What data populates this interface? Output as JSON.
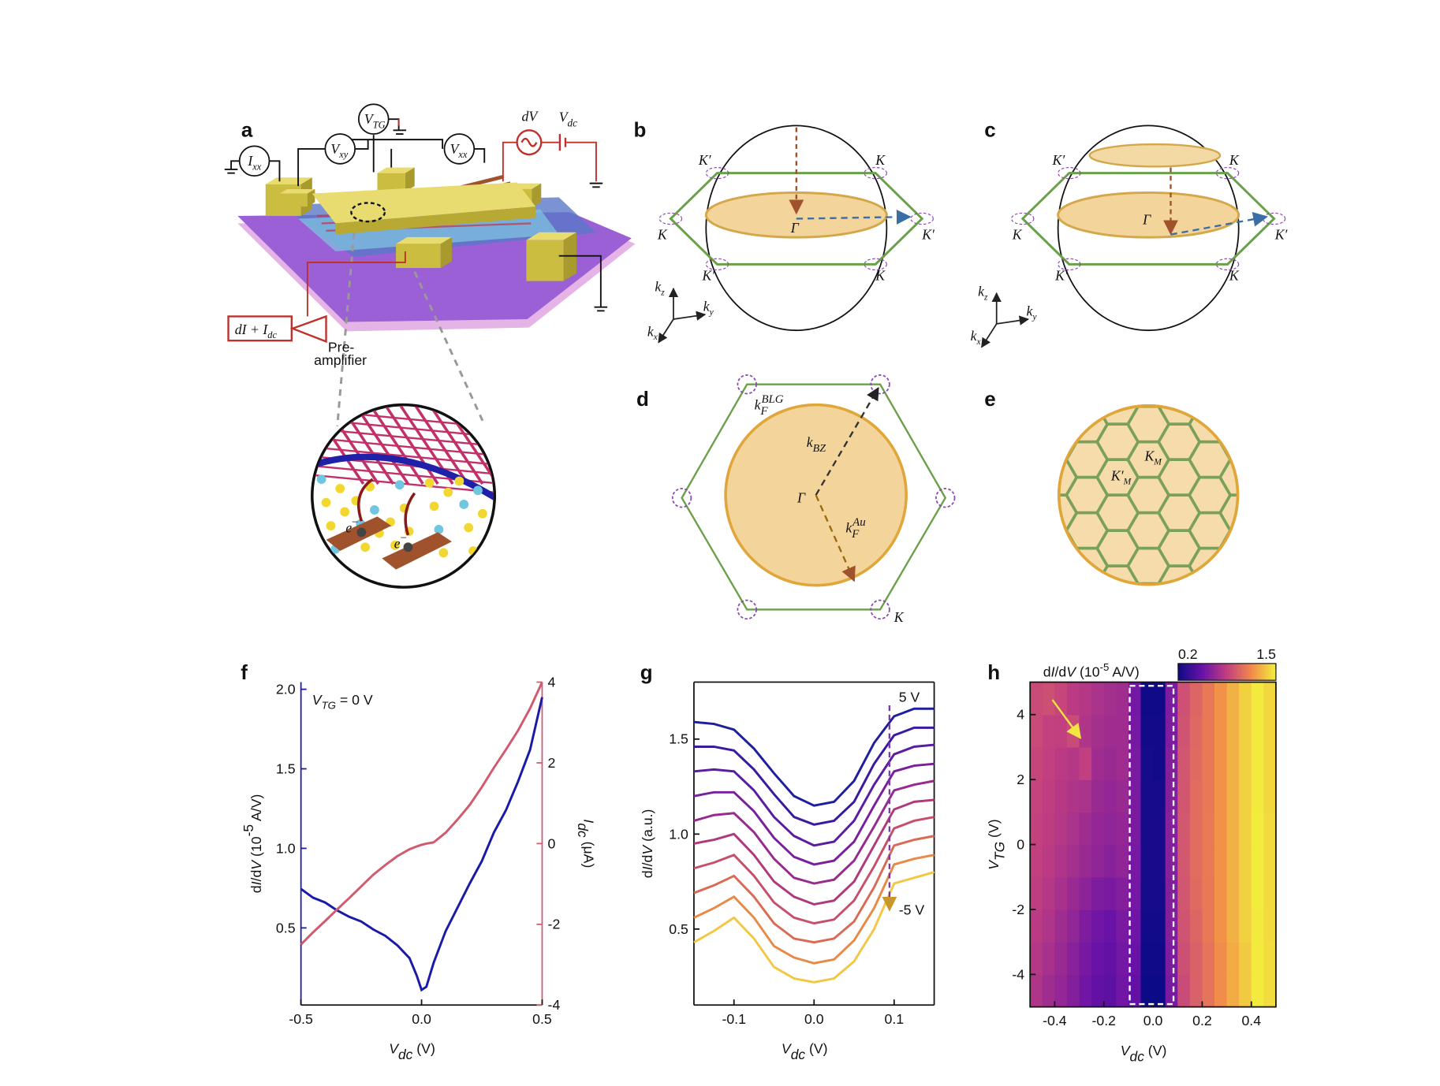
{
  "figure": {
    "panel_labels": [
      "a",
      "b",
      "c",
      "d",
      "e",
      "f",
      "g",
      "h"
    ],
    "a": {
      "meters": [
        [
          [
            "I",
            "i"
          ],
          [
            "xx",
            "isub"
          ]
        ],
        [
          [
            "V",
            "i"
          ],
          [
            "xy",
            "isub"
          ]
        ],
        [
          [
            "V",
            "i"
          ],
          [
            "TG",
            "isub"
          ]
        ],
        [
          [
            "V",
            "i"
          ],
          [
            "xx",
            "isub"
          ]
        ]
      ],
      "source_ac": [
        [
          "dV",
          "i"
        ]
      ],
      "source_dc": [
        [
          "V",
          "i"
        ],
        [
          "dc",
          "isub"
        ]
      ],
      "output": [
        [
          "dI + I",
          "i"
        ],
        [
          "dc",
          "isub"
        ]
      ],
      "amplifier": [
        "Pre-",
        "amplifier"
      ],
      "carrier": [
        [
          "e",
          "i"
        ],
        [
          "−",
          "sup"
        ]
      ]
    },
    "b": {
      "points": [
        "K′",
        "K",
        "K",
        "K′",
        "K′",
        "K"
      ],
      "center": "Γ",
      "axes": [
        [
          [
            "k",
            "i"
          ],
          [
            "z",
            "isub"
          ]
        ],
        [
          [
            "k",
            "i"
          ],
          [
            "y",
            "isub"
          ]
        ],
        [
          [
            "k",
            "i"
          ],
          [
            "x",
            "isub"
          ]
        ]
      ]
    },
    "c": {
      "points": [
        "K′",
        "K",
        "K",
        "K′",
        "K′",
        "K"
      ],
      "center": "Γ",
      "axes": [
        [
          [
            "k",
            "i"
          ],
          [
            "z",
            "isub"
          ]
        ],
        [
          [
            "k",
            "i"
          ],
          [
            "y",
            "isub"
          ]
        ],
        [
          [
            "k",
            "i"
          ],
          [
            "x",
            "isub"
          ]
        ]
      ]
    },
    "d": {
      "fermi_blg": [
        [
          "k",
          "i"
        ],
        [
          "F",
          "isub"
        ],
        [
          "BLG",
          "isup"
        ]
      ],
      "k_bz": [
        [
          "k",
          "i"
        ],
        [
          "BZ",
          "isub"
        ]
      ],
      "center": "Γ",
      "fermi_au": [
        [
          "k",
          "i"
        ],
        [
          "F",
          "isub"
        ],
        [
          "Au",
          "isup"
        ]
      ],
      "corner": "K"
    },
    "e": {
      "k_m": [
        [
          "K",
          "i"
        ],
        [
          "M",
          "isub"
        ]
      ],
      "k_m_prime": [
        [
          "K′",
          "i"
        ],
        [
          "M",
          "isub"
        ]
      ]
    }
  },
  "chart_data": [
    {
      "type": "line",
      "annotation": [
        [
          "V",
          "i"
        ],
        [
          "TG",
          "isub"
        ],
        [
          " = 0 V",
          ""
        ]
      ],
      "xlabel": [
        [
          "V",
          "i"
        ],
        [
          "dc",
          "isub"
        ],
        [
          " (V)",
          ""
        ]
      ],
      "ylabel": [
        [
          "d",
          ""
        ],
        [
          "I",
          "i"
        ],
        [
          "/d",
          ""
        ],
        [
          "V",
          "i"
        ],
        [
          " (10",
          ""
        ],
        [
          "-5",
          "sup"
        ],
        [
          " A/V)",
          ""
        ]
      ],
      "y2label": [
        [
          "I",
          "i"
        ],
        [
          "dc",
          "isub"
        ],
        [
          " (μA)",
          ""
        ]
      ],
      "x": [
        -0.5,
        -0.45,
        -0.4,
        -0.35,
        -0.3,
        -0.25,
        -0.2,
        -0.15,
        -0.1,
        -0.05,
        -0.02,
        0,
        0.02,
        0.05,
        0.1,
        0.15,
        0.2,
        0.25,
        0.3,
        0.35,
        0.4,
        0.45,
        0.5
      ],
      "series": [
        {
          "color": "#1a1aa8",
          "values": [
            0.745,
            0.69,
            0.66,
            0.61,
            0.57,
            0.54,
            0.49,
            0.45,
            0.39,
            0.31,
            0.2,
            0.11,
            0.13,
            0.28,
            0.48,
            0.63,
            0.78,
            0.92,
            1.1,
            1.24,
            1.42,
            1.62,
            1.95
          ]
        },
        {
          "color": "#d05a6e",
          "axis": "y2",
          "values": [
            -2.5,
            -2.2,
            -1.92,
            -1.63,
            -1.35,
            -1.06,
            -0.77,
            -0.53,
            -0.31,
            -0.14,
            -0.07,
            -0.03,
            0,
            0.03,
            0.27,
            0.6,
            0.96,
            1.4,
            1.88,
            2.33,
            2.8,
            3.35,
            4
          ]
        }
      ],
      "xlim": [
        -0.5,
        0.5
      ],
      "xticks": [
        -0.5,
        {
          "value": 0,
          "label": "0.0"
        },
        0.5
      ],
      "ylim": [
        0.015,
        2.045
      ],
      "yticks": [
        0.5,
        {
          "value": 1,
          "label": "1.0"
        },
        1.5,
        {
          "value": 2,
          "label": "2.0"
        }
      ],
      "y2lim": [
        -4,
        4
      ],
      "y2ticks": [
        -4,
        -2,
        0,
        2,
        4
      ]
    },
    {
      "type": "line",
      "xlabel": [
        [
          "V",
          "i"
        ],
        [
          "dc",
          "isub"
        ],
        [
          " (V)",
          ""
        ]
      ],
      "ylabel": [
        [
          "d",
          ""
        ],
        [
          "I",
          "i"
        ],
        [
          "/d",
          ""
        ],
        [
          "V",
          "i"
        ],
        [
          " (a.u.)",
          ""
        ]
      ],
      "annotations": [
        {
          "text": "5 V",
          "color": "#2a2ab0"
        },
        {
          "text": "-5 V",
          "color": "#c8962a"
        }
      ],
      "x": [
        -0.15,
        -0.125,
        -0.1,
        -0.075,
        -0.05,
        -0.025,
        0,
        0.025,
        0.05,
        0.075,
        0.1,
        0.125,
        0.15
      ],
      "series": [
        {
          "color": "#1f1f9e",
          "values": [
            1.59,
            1.58,
            1.55,
            1.45,
            1.32,
            1.2,
            1.15,
            1.17,
            1.28,
            1.48,
            1.62,
            1.66,
            1.66
          ]
        },
        {
          "color": "#3a1aa0",
          "values": [
            1.46,
            1.46,
            1.44,
            1.34,
            1.21,
            1.09,
            1.05,
            1.07,
            1.17,
            1.37,
            1.52,
            1.56,
            1.56
          ]
        },
        {
          "color": "#5a1ca0",
          "values": [
            1.33,
            1.34,
            1.33,
            1.23,
            1.09,
            0.99,
            0.94,
            0.96,
            1.07,
            1.26,
            1.42,
            1.46,
            1.47
          ]
        },
        {
          "color": "#7a1f9c",
          "values": [
            1.2,
            1.22,
            1.22,
            1.12,
            0.98,
            0.88,
            0.84,
            0.86,
            0.96,
            1.15,
            1.33,
            1.36,
            1.37
          ]
        },
        {
          "color": "#962a8e",
          "values": [
            1.07,
            1.1,
            1.11,
            1.01,
            0.87,
            0.77,
            0.74,
            0.76,
            0.86,
            1.04,
            1.23,
            1.26,
            1.28
          ]
        },
        {
          "color": "#b0397c",
          "values": [
            0.95,
            0.97,
            1,
            0.89,
            0.75,
            0.67,
            0.63,
            0.65,
            0.75,
            0.94,
            1.13,
            1.17,
            1.18
          ]
        },
        {
          "color": "#c6506a",
          "values": [
            0.82,
            0.85,
            0.89,
            0.78,
            0.64,
            0.56,
            0.53,
            0.55,
            0.65,
            0.83,
            1.03,
            1.07,
            1.09
          ]
        },
        {
          "color": "#d96b55",
          "values": [
            0.69,
            0.73,
            0.78,
            0.67,
            0.53,
            0.45,
            0.43,
            0.45,
            0.54,
            0.72,
            0.94,
            0.97,
            0.99
          ]
        },
        {
          "color": "#e88a46",
          "values": [
            0.56,
            0.61,
            0.67,
            0.56,
            0.41,
            0.35,
            0.32,
            0.34,
            0.44,
            0.61,
            0.84,
            0.87,
            0.89
          ]
        },
        {
          "color": "#f2c744",
          "values": [
            0.43,
            0.49,
            0.56,
            0.45,
            0.3,
            0.24,
            0.22,
            0.24,
            0.33,
            0.5,
            0.74,
            0.77,
            0.8
          ]
        }
      ],
      "xlim": [
        -0.15,
        0.15
      ],
      "xticks": [
        -0.1,
        {
          "value": 0,
          "label": "0.0"
        },
        0.1
      ],
      "ylim": [
        0.1,
        1.8
      ],
      "yticks": [
        0.5,
        {
          "value": 1,
          "label": "1.0"
        },
        1.5
      ]
    },
    {
      "type": "heatmap",
      "xlabel": [
        [
          "V",
          "i"
        ],
        [
          "dc",
          "isub"
        ],
        [
          " (V)",
          ""
        ]
      ],
      "ylabel": [
        [
          "V",
          "i"
        ],
        [
          "TG",
          "isub"
        ],
        [
          " (V)",
          ""
        ]
      ],
      "colorbar_label": [
        [
          "d",
          ""
        ],
        [
          "I",
          "i"
        ],
        [
          "/d",
          ""
        ],
        [
          "V",
          "i"
        ],
        [
          " (10",
          ""
        ],
        [
          "-5",
          "sup"
        ],
        [
          " A/V)",
          ""
        ]
      ],
      "colormap": [
        "#0d0a87",
        "#6a12a8",
        "#c23f80",
        "#f28a4a",
        "#f2f03c"
      ],
      "zlim": [
        0.2,
        1.5
      ],
      "colorbar_ticks": [
        0.2,
        1.5
      ],
      "x": [
        -0.475,
        -0.425,
        -0.375,
        -0.325,
        -0.275,
        -0.225,
        -0.175,
        -0.125,
        -0.075,
        -0.025,
        0.025,
        0.075,
        0.125,
        0.175,
        0.225,
        0.275,
        0.325,
        0.375,
        0.425,
        0.475
      ],
      "y": [
        -4.5,
        -3.5,
        -2.5,
        -1.5,
        -0.5,
        0.5,
        1.5,
        2.5,
        3.5,
        4.5
      ],
      "z": [
        [
          0.78,
          0.72,
          0.68,
          0.62,
          0.55,
          0.5,
          0.48,
          0.55,
          0.5,
          0.2,
          0.2,
          0.58,
          0.9,
          1,
          1.08,
          1.18,
          1.28,
          1.38,
          1.48,
          1.44
        ],
        [
          0.8,
          0.75,
          0.7,
          0.64,
          0.57,
          0.52,
          0.5,
          0.56,
          0.52,
          0.21,
          0.21,
          0.6,
          0.92,
          1,
          1.08,
          1.18,
          1.28,
          1.38,
          1.48,
          1.44
        ],
        [
          0.82,
          0.78,
          0.72,
          0.67,
          0.6,
          0.55,
          0.52,
          0.58,
          0.54,
          0.22,
          0.22,
          0.62,
          0.94,
          1.02,
          1.1,
          1.2,
          1.3,
          1.4,
          1.48,
          1.43
        ],
        [
          0.84,
          0.8,
          0.75,
          0.7,
          0.65,
          0.6,
          0.58,
          0.62,
          0.56,
          0.23,
          0.23,
          0.62,
          0.95,
          1.04,
          1.1,
          1.2,
          1.3,
          1.4,
          1.49,
          1.43
        ],
        [
          0.85,
          0.82,
          0.78,
          0.74,
          0.7,
          0.66,
          0.64,
          0.66,
          0.57,
          0.24,
          0.24,
          0.63,
          0.96,
          1.05,
          1.11,
          1.2,
          1.3,
          1.4,
          1.49,
          1.43
        ],
        [
          0.86,
          0.83,
          0.8,
          0.76,
          0.72,
          0.68,
          0.66,
          0.68,
          0.58,
          0.24,
          0.24,
          0.63,
          0.96,
          1.05,
          1.11,
          1.2,
          1.3,
          1.4,
          1.49,
          1.43
        ],
        [
          0.87,
          0.84,
          0.81,
          0.78,
          0.76,
          0.7,
          0.68,
          0.7,
          0.58,
          0.24,
          0.23,
          0.62,
          0.95,
          1.05,
          1.1,
          1.2,
          1.3,
          1.4,
          1.48,
          1.42
        ],
        [
          0.88,
          0.85,
          0.82,
          0.8,
          0.85,
          0.72,
          0.7,
          0.72,
          0.58,
          0.23,
          0.22,
          0.62,
          0.95,
          1.04,
          1.1,
          1.2,
          1.3,
          1.4,
          1.48,
          1.42
        ],
        [
          0.9,
          0.86,
          0.85,
          0.9,
          0.78,
          0.74,
          0.72,
          0.72,
          0.57,
          0.22,
          0.22,
          0.6,
          0.94,
          1.03,
          1.1,
          1.2,
          1.3,
          1.4,
          1.48,
          1.42
        ],
        [
          0.9,
          0.92,
          0.88,
          0.82,
          0.8,
          0.76,
          0.74,
          0.72,
          0.56,
          0.21,
          0.21,
          0.6,
          0.93,
          1.02,
          1.1,
          1.2,
          1.3,
          1.4,
          1.48,
          1.42
        ]
      ],
      "xlim": [
        -0.5,
        0.5
      ],
      "xticks": [
        -0.4,
        -0.2,
        {
          "value": 0,
          "label": "0.0"
        },
        0.2,
        0.4
      ],
      "ylim": [
        -5,
        5
      ],
      "yticks": [
        -4,
        -2,
        0,
        2,
        4
      ]
    }
  ]
}
